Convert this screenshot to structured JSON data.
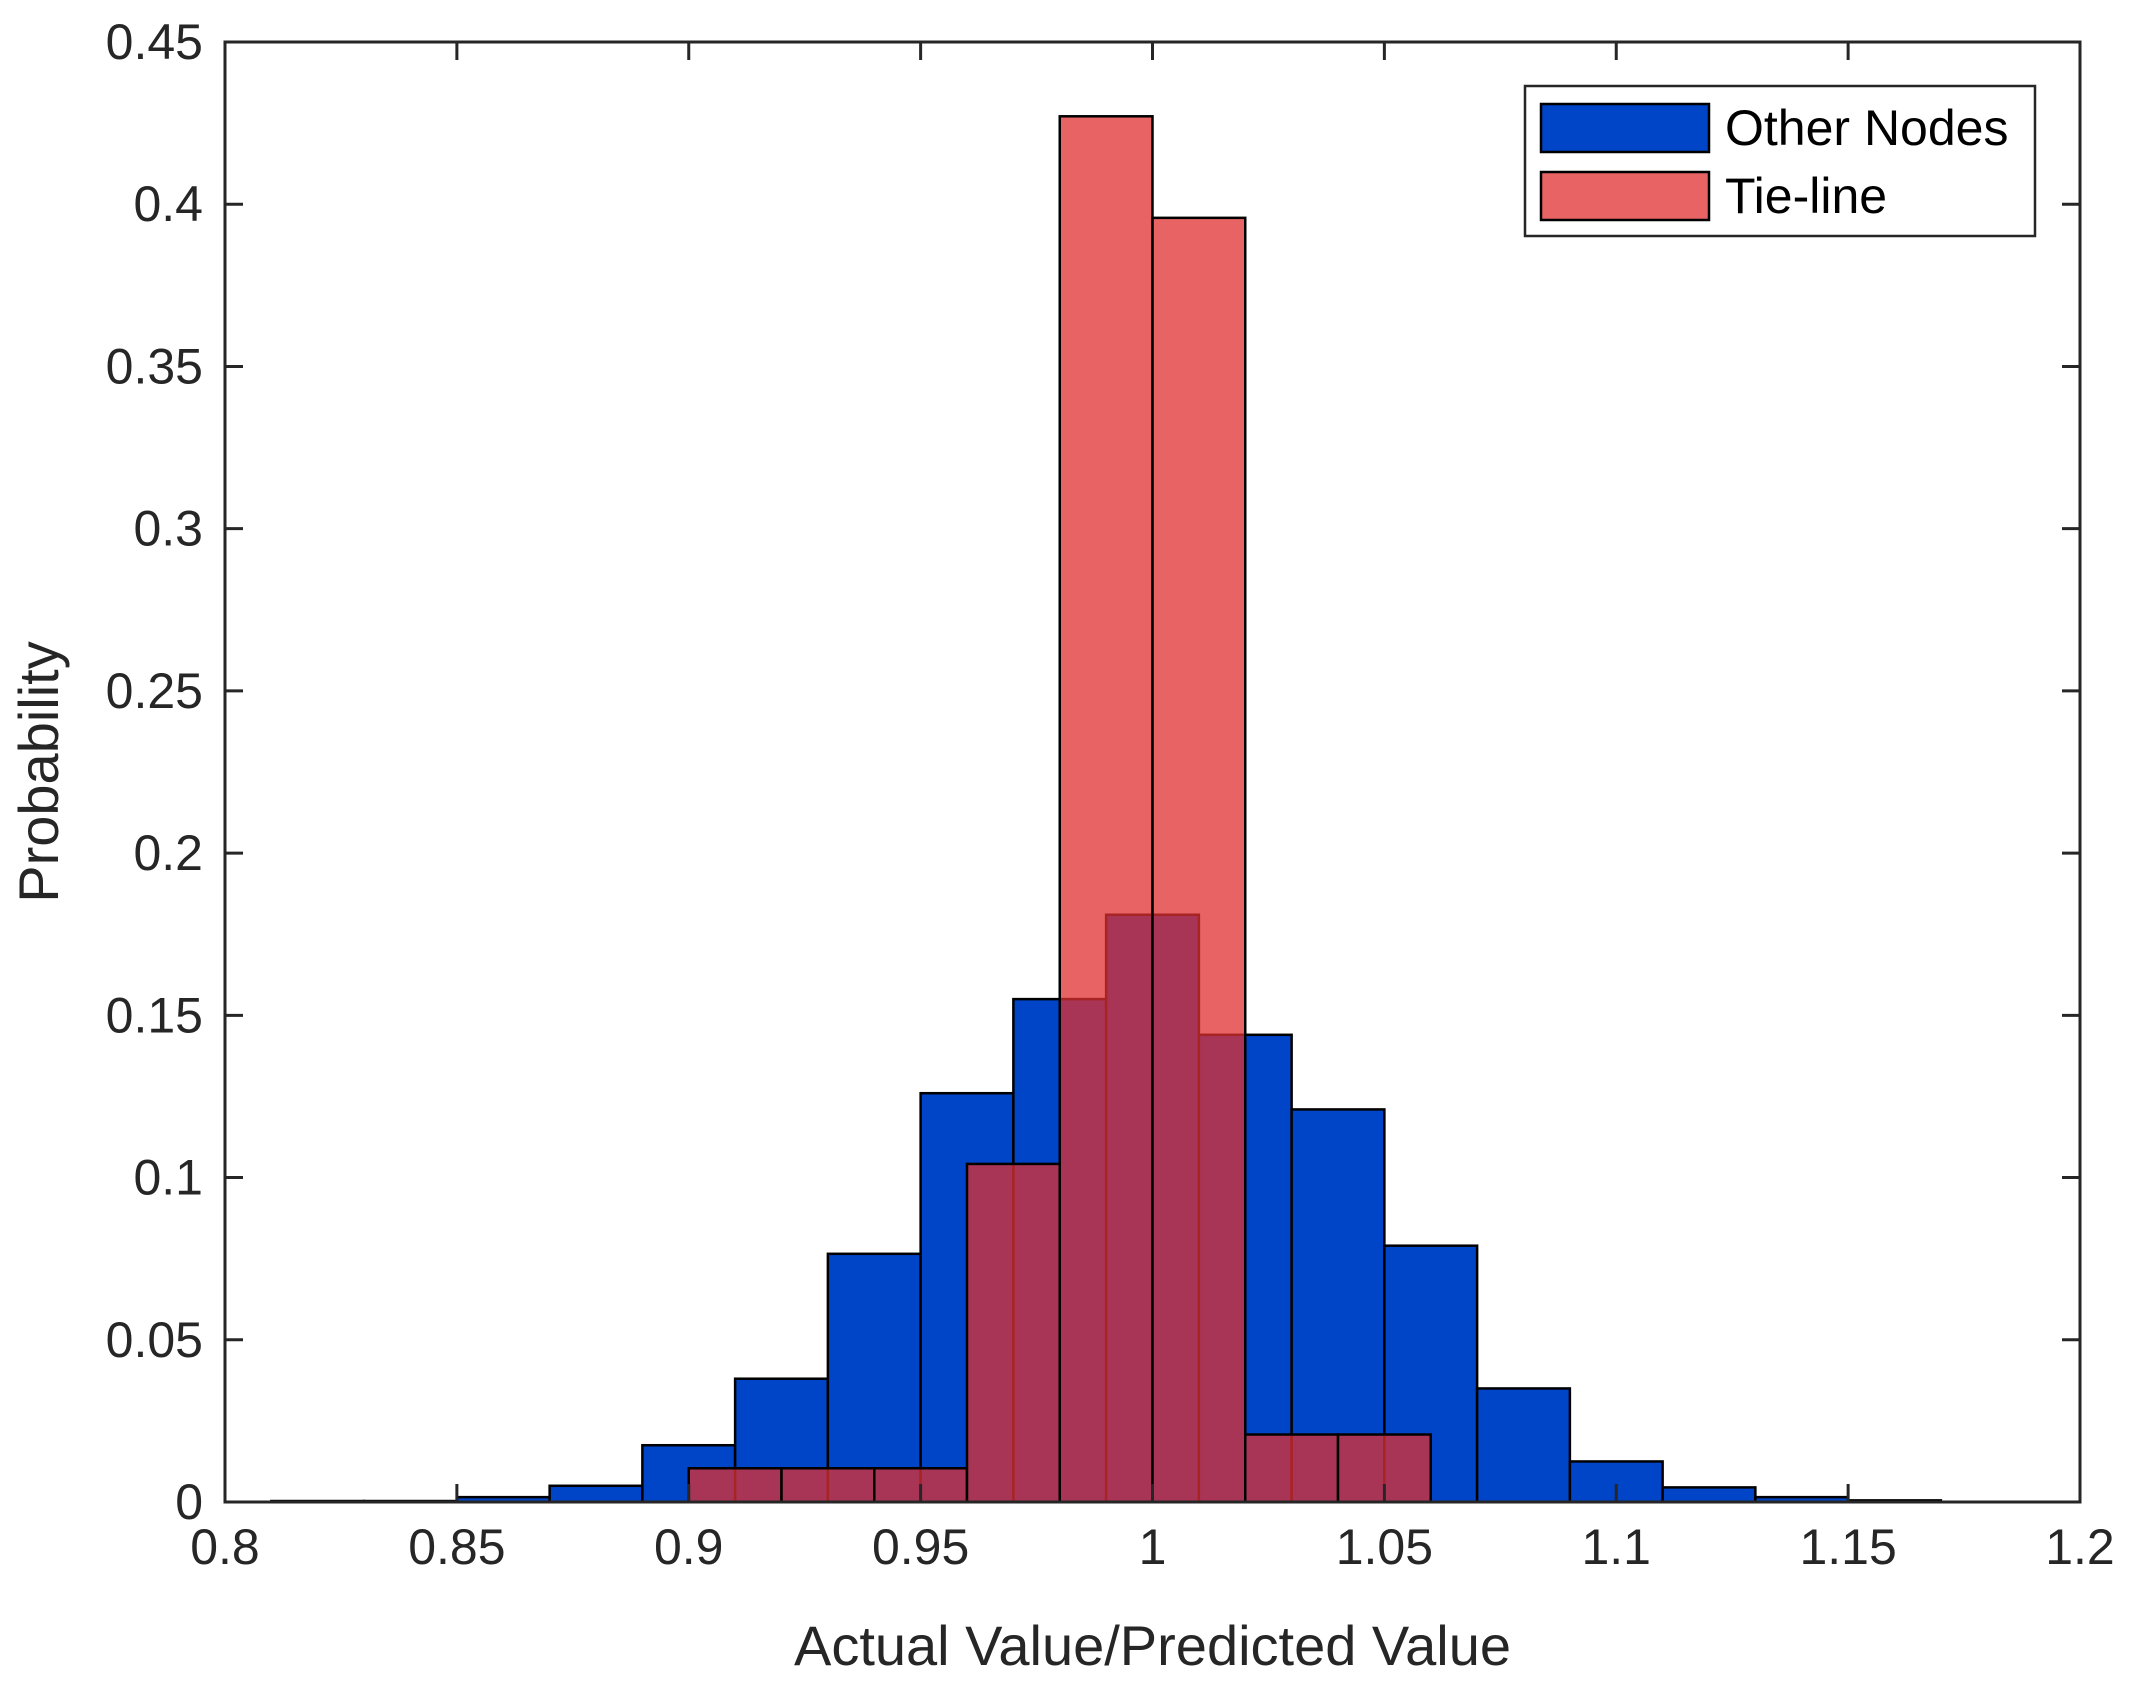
{
  "chart_data": {
    "type": "histogram",
    "xlabel": "Actual Value/Predicted Value",
    "ylabel": "Probability",
    "xlim": [
      0.8,
      1.2
    ],
    "ylim": [
      0,
      0.45
    ],
    "x_ticks": [
      0.8,
      0.85,
      0.9,
      0.95,
      1.0,
      1.05,
      1.1,
      1.15,
      1.2
    ],
    "x_tick_labels": [
      "0.8",
      "0.85",
      "0.9",
      "0.95",
      "1",
      "1.05",
      "1.1",
      "1.15",
      "1.2"
    ],
    "y_ticks": [
      0,
      0.05,
      0.1,
      0.15,
      0.2,
      0.25,
      0.3,
      0.35,
      0.4,
      0.45
    ],
    "y_tick_labels": [
      "0",
      "0.05",
      "0.1",
      "0.15",
      "0.2",
      "0.25",
      "0.3",
      "0.35",
      "0.4",
      "0.45"
    ],
    "grid": false,
    "legend_position": "top-right",
    "series": [
      {
        "name": "Other Nodes",
        "color": "#0044c8",
        "opacity": 1,
        "bin_width": 0.02,
        "bin_starts": [
          0.81,
          0.83,
          0.85,
          0.87,
          0.89,
          0.91,
          0.93,
          0.95,
          0.97,
          0.99,
          1.01,
          1.03,
          1.05,
          1.07,
          1.09,
          1.11,
          1.13,
          1.15
        ],
        "values": [
          0.0003,
          0.0003,
          0.0015,
          0.005,
          0.0175,
          0.038,
          0.0765,
          0.126,
          0.155,
          0.181,
          0.144,
          0.121,
          0.079,
          0.035,
          0.0125,
          0.0045,
          0.0015,
          0.0005
        ]
      },
      {
        "name": "Tie-line",
        "color": "#e03030",
        "opacity": 0.75,
        "bin_width": 0.02,
        "bin_starts": [
          0.9,
          0.92,
          0.94,
          0.96,
          0.98,
          1.0,
          1.02,
          1.04
        ],
        "values": [
          0.0104,
          0.0104,
          0.0104,
          0.1042,
          0.4271,
          0.3958,
          0.0208,
          0.0208
        ]
      }
    ]
  }
}
